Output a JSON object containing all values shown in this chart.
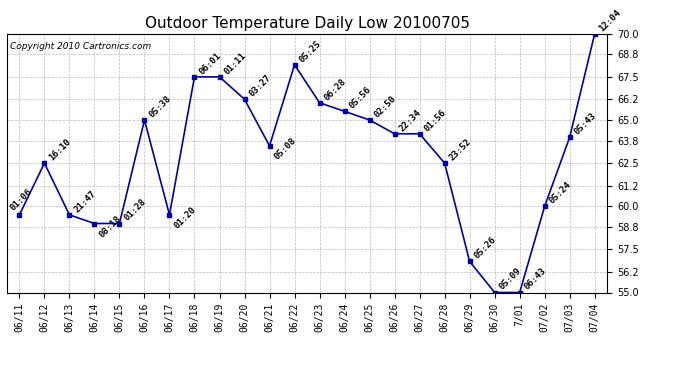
{
  "title": "Outdoor Temperature Daily Low 20100705",
  "copyright": "Copyright 2010 Cartronics.com",
  "dates": [
    "06/11",
    "06/12",
    "06/13",
    "06/14",
    "06/15",
    "06/16",
    "06/17",
    "06/18",
    "06/19",
    "06/20",
    "06/21",
    "06/22",
    "06/23",
    "06/24",
    "06/25",
    "06/26",
    "06/27",
    "06/28",
    "06/29",
    "06/30",
    "7/01",
    "07/02",
    "07/03",
    "07/04"
  ],
  "temperatures": [
    59.5,
    62.5,
    59.5,
    59.0,
    59.0,
    65.0,
    59.5,
    67.5,
    67.5,
    66.2,
    63.5,
    68.2,
    66.0,
    65.5,
    65.0,
    64.2,
    64.2,
    62.5,
    56.8,
    55.0,
    55.0,
    60.0,
    64.0,
    70.0
  ],
  "annotations": [
    "01:06",
    "16:10",
    "21:47",
    "08:18",
    "01:28",
    "05:38",
    "01:20",
    "06:01",
    "01:11",
    "03:27",
    "05:08",
    "05:25",
    "06:28",
    "05:56",
    "02:50",
    "22:34",
    "01:56",
    "23:52",
    "05:26",
    "05:09",
    "06:43",
    "05:24",
    "05:43",
    "12:04"
  ],
  "line_color": "#0000AA",
  "marker_color": "#0000AA",
  "bg_color": "#ffffff",
  "grid_color": "#bbbbbb",
  "ylim": [
    55.0,
    70.0
  ],
  "yticks": [
    55.0,
    56.2,
    57.5,
    58.8,
    60.0,
    61.2,
    62.5,
    63.8,
    65.0,
    66.2,
    67.5,
    68.8,
    70.0
  ],
  "title_fontsize": 11,
  "annotation_fontsize": 6.5,
  "tick_fontsize": 7,
  "copyright_fontsize": 6.5
}
